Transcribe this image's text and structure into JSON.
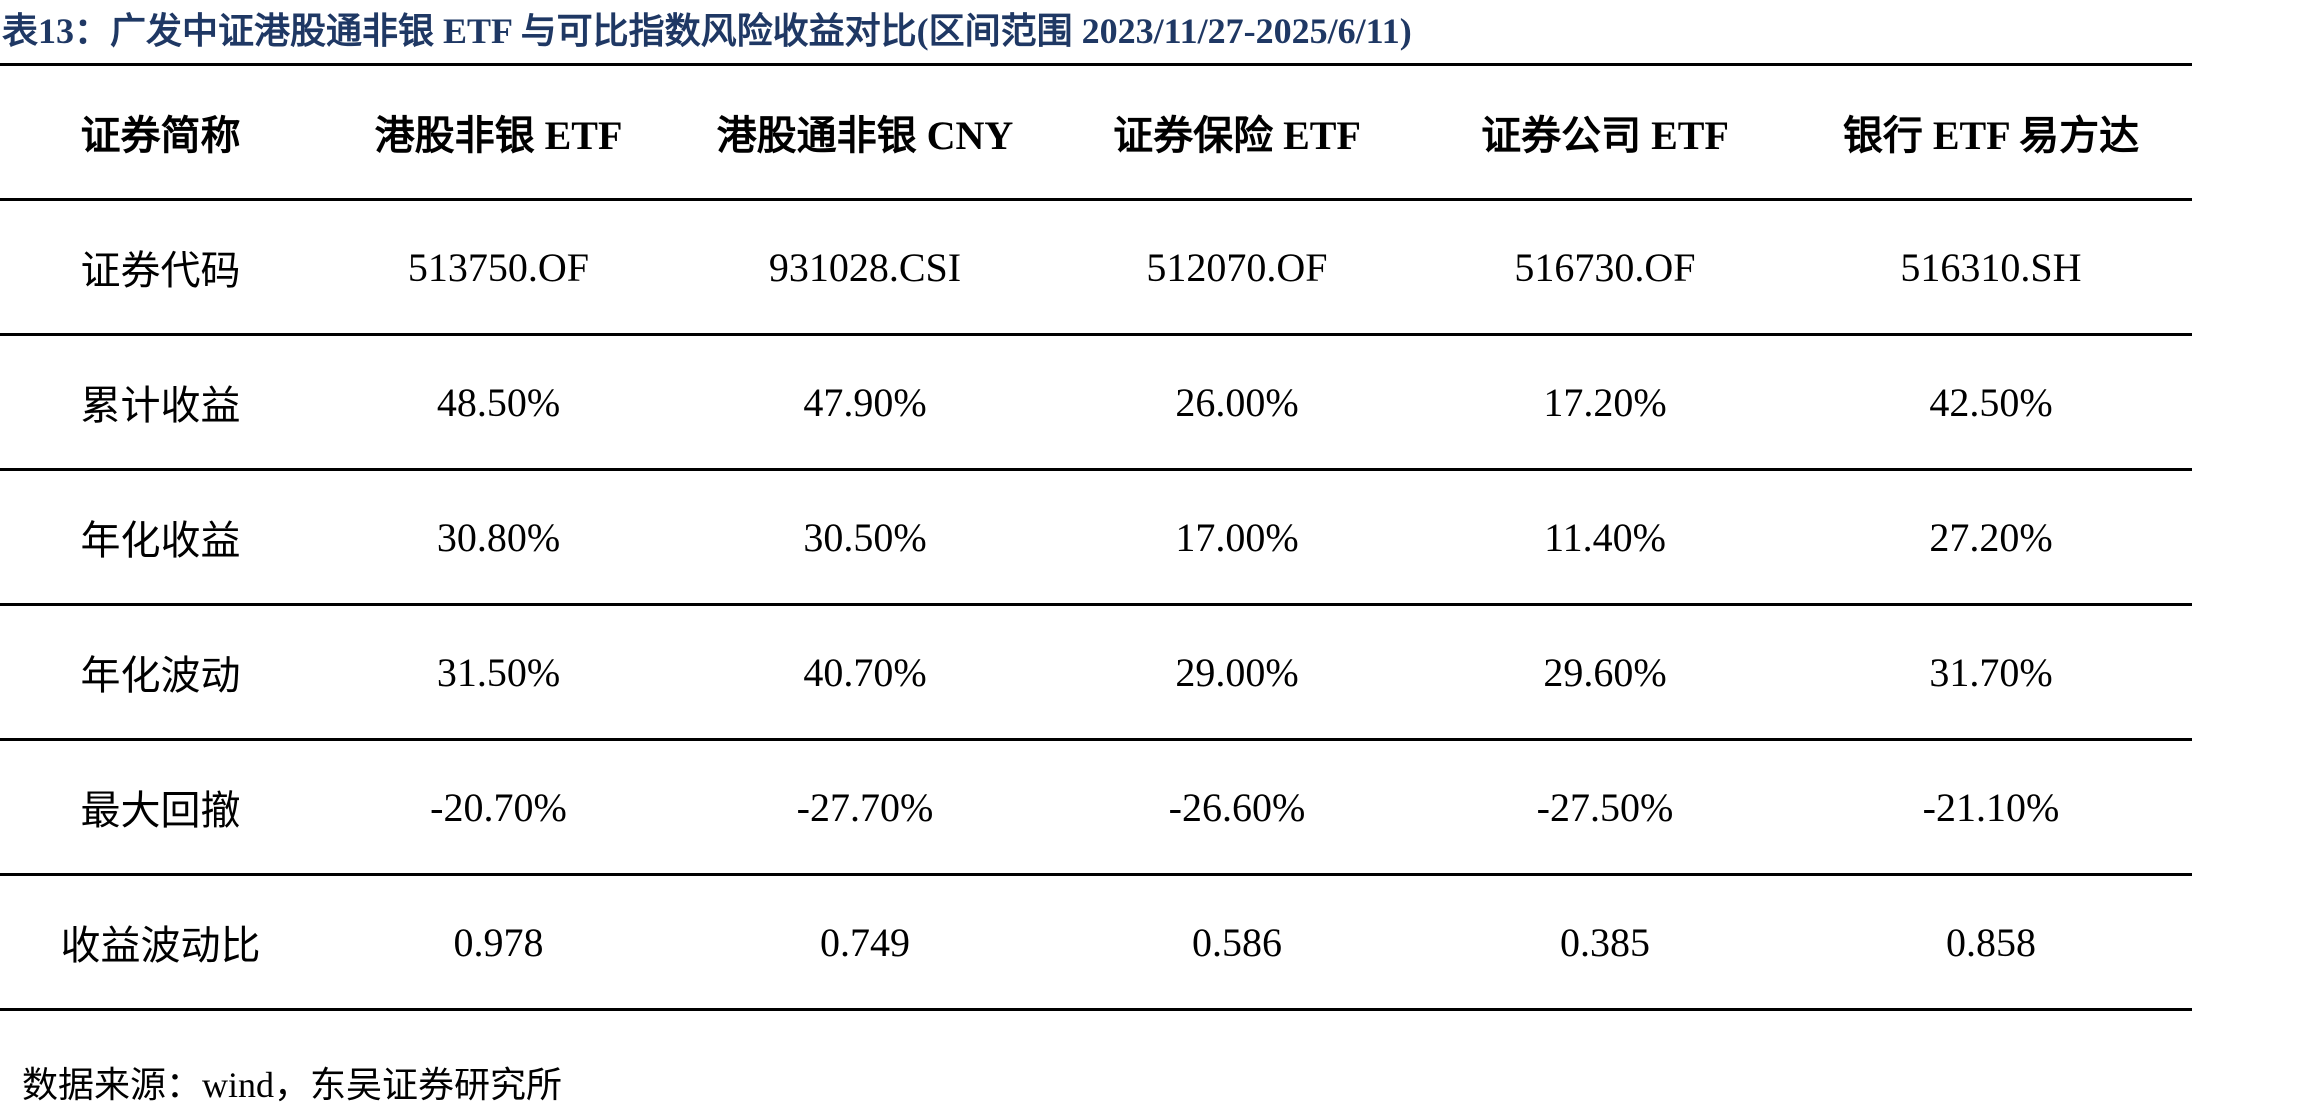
{
  "title": "表13：广发中证港股通非银 ETF 与可比指数风险收益对比(区间范围 2023/11/27-2025/6/11)",
  "table": {
    "header": [
      "证券简称",
      "港股非银 ETF",
      "港股通非银 CNY",
      "证券保险 ETF",
      "证券公司 ETF",
      "银行 ETF 易方达"
    ],
    "rows": [
      [
        "证券代码",
        "513750.OF",
        "931028.CSI",
        "512070.OF",
        "516730.OF",
        "516310.SH"
      ],
      [
        "累计收益",
        "48.50%",
        "47.90%",
        "26.00%",
        "17.20%",
        "42.50%"
      ],
      [
        "年化收益",
        "30.80%",
        "30.50%",
        "17.00%",
        "11.40%",
        "27.20%"
      ],
      [
        "年化波动",
        "31.50%",
        "40.70%",
        "29.00%",
        "29.60%",
        "31.70%"
      ],
      [
        "最大回撤",
        "-20.70%",
        "-27.70%",
        "-26.60%",
        "-27.50%",
        "-21.10%"
      ],
      [
        "收益波动比",
        "0.978",
        "0.749",
        "0.586",
        "0.385",
        "0.858"
      ]
    ]
  },
  "source": "数据来源：wind，东吴证券研究所"
}
